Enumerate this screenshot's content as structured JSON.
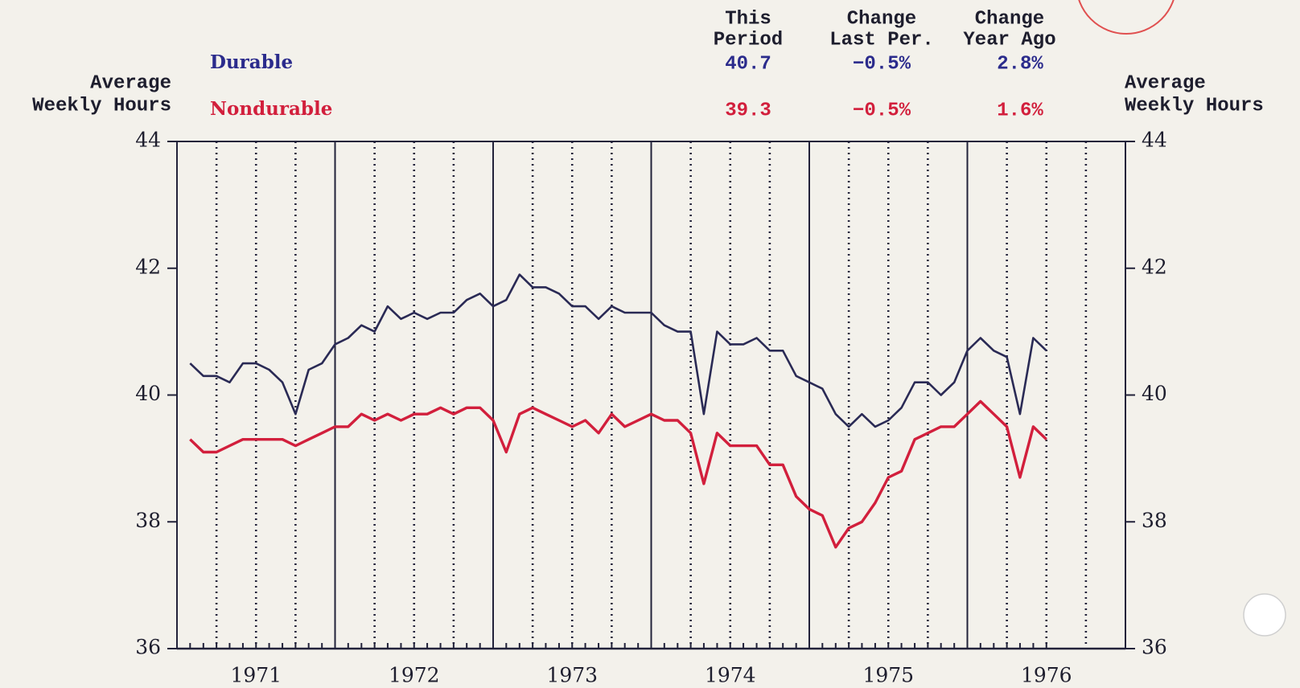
{
  "chart_data": {
    "type": "line",
    "y_label": [
      "Average",
      "Weekly Hours"
    ],
    "y2_label": [
      "Average",
      "Weekly Hours"
    ],
    "table": {
      "headers": [
        [
          "This",
          "Period"
        ],
        [
          "Change",
          "Last Per."
        ],
        [
          "Change",
          "Year Ago"
        ]
      ],
      "rows": [
        [
          "40.7",
          "−0.5%",
          "2.8%"
        ],
        [
          "39.3",
          "−0.5%",
          "1.6%"
        ]
      ]
    },
    "x": [
      1971.083,
      1971.167,
      1971.25,
      1971.333,
      1971.417,
      1971.5,
      1971.583,
      1971.667,
      1971.75,
      1971.833,
      1971.917,
      1972,
      1972.083,
      1972.167,
      1972.25,
      1972.333,
      1972.417,
      1972.5,
      1972.583,
      1972.667,
      1972.75,
      1972.833,
      1972.917,
      1973,
      1973.083,
      1973.167,
      1973.25,
      1973.333,
      1973.417,
      1973.5,
      1973.583,
      1973.667,
      1973.75,
      1973.833,
      1973.917,
      1974,
      1974.083,
      1974.167,
      1974.25,
      1974.333,
      1974.417,
      1974.5,
      1974.583,
      1974.667,
      1974.75,
      1974.833,
      1974.917,
      1975,
      1975.083,
      1975.167,
      1975.25,
      1975.333,
      1975.417,
      1975.5,
      1975.583,
      1975.667,
      1975.75,
      1975.833,
      1975.917,
      1976,
      1976.083,
      1976.167,
      1976.25,
      1976.333,
      1976.417,
      1976.5
    ],
    "series": [
      {
        "name": "Durable",
        "color": "#2a2a55",
        "label_color": "#2b2b8c",
        "values": [
          40.5,
          40.3,
          40.3,
          40.2,
          40.5,
          40.5,
          40.4,
          40.2,
          39.7,
          40.4,
          40.5,
          40.8,
          40.9,
          41.1,
          41.0,
          41.4,
          41.2,
          41.3,
          41.2,
          41.3,
          41.3,
          41.5,
          41.6,
          41.4,
          41.5,
          41.9,
          41.7,
          41.7,
          41.6,
          41.4,
          41.4,
          41.2,
          41.4,
          41.3,
          41.3,
          41.3,
          41.1,
          41.0,
          41.0,
          39.7,
          41.0,
          40.8,
          40.8,
          40.9,
          40.7,
          40.7,
          40.3,
          40.2,
          40.1,
          39.7,
          39.5,
          39.7,
          39.5,
          39.6,
          39.8,
          40.2,
          40.2,
          40.0,
          40.2,
          40.7,
          40.9,
          40.7,
          40.6,
          39.7,
          40.9,
          40.7
        ]
      },
      {
        "name": "Nondurable",
        "color": "#d21f3c",
        "label_color": "#d21f3c",
        "values": [
          39.3,
          39.1,
          39.1,
          39.2,
          39.3,
          39.3,
          39.3,
          39.3,
          39.2,
          39.3,
          39.4,
          39.5,
          39.5,
          39.7,
          39.6,
          39.7,
          39.6,
          39.7,
          39.7,
          39.8,
          39.7,
          39.8,
          39.8,
          39.6,
          39.1,
          39.7,
          39.8,
          39.7,
          39.6,
          39.5,
          39.6,
          39.4,
          39.7,
          39.5,
          39.6,
          39.7,
          39.6,
          39.6,
          39.4,
          38.6,
          39.4,
          39.2,
          39.2,
          39.2,
          38.9,
          38.9,
          38.4,
          38.2,
          38.1,
          37.6,
          37.9,
          38.0,
          38.3,
          38.7,
          38.8,
          39.3,
          39.4,
          39.5,
          39.5,
          39.7,
          39.9,
          39.7,
          39.5,
          38.7,
          39.5,
          39.3
        ]
      }
    ],
    "xlim": [
      1971,
      1977
    ],
    "xticks": [
      1971,
      1972,
      1973,
      1974,
      1975,
      1976,
      1977
    ],
    "xtick_labels": [
      {
        "value": 1971.5,
        "label": "1971"
      },
      {
        "value": 1972.5,
        "label": "1972"
      },
      {
        "value": 1973.5,
        "label": "1973"
      },
      {
        "value": 1974.5,
        "label": "1974"
      },
      {
        "value": 1975.5,
        "label": "1975"
      },
      {
        "value": 1976.5,
        "label": "1976"
      }
    ],
    "xminor_grid": [
      1971.25,
      1971.5,
      1971.75,
      1972.25,
      1972.5,
      1972.75,
      1973.25,
      1973.5,
      1973.75,
      1974.25,
      1974.5,
      1974.75,
      1975.25,
      1975.5,
      1975.75,
      1976.25,
      1976.5,
      1976.75
    ],
    "ylim": [
      36,
      44
    ],
    "yticks": [
      36,
      38,
      40,
      42,
      44
    ],
    "y2lim": [
      36,
      44
    ],
    "y2ticks": [
      36,
      38,
      40,
      42,
      44
    ]
  }
}
